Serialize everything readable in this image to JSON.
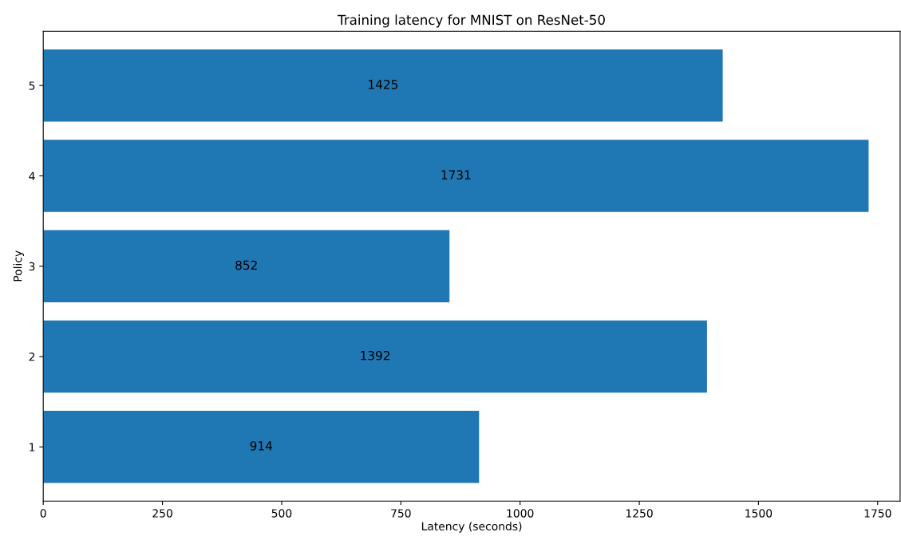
{
  "chart_data": {
    "type": "bar",
    "orientation": "horizontal",
    "title": "Training latency for MNIST on ResNet-50",
    "xlabel": "Latency (seconds)",
    "ylabel": "Policy",
    "categories": [
      "5",
      "4",
      "3",
      "2",
      "1"
    ],
    "values": [
      1425,
      1731,
      852,
      1392,
      914
    ],
    "color": "#1f77b4",
    "xlim": [
      0,
      1797
    ],
    "xticks": [
      0,
      250,
      500,
      750,
      1000,
      1250,
      1500,
      1750
    ],
    "data_labels": true,
    "grid": false
  }
}
